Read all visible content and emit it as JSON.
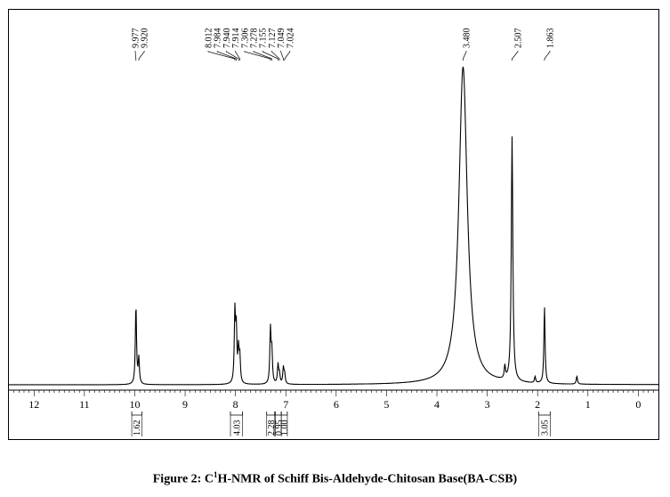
{
  "caption": {
    "prefix": "Figure 2: C",
    "superscript": "1",
    "suffix": "H-NMR of Schiff Bis-Aldehyde-Chitosan Base(BA-CSB)"
  },
  "chart_data": {
    "type": "line",
    "title": "",
    "xlabel": "",
    "ylabel": "",
    "x_reversed": true,
    "xlim": [
      12.5,
      -0.4
    ],
    "x_ticks": [
      12,
      11,
      10,
      9,
      8,
      7,
      6,
      5,
      4,
      3,
      2,
      1,
      0
    ],
    "grid": false,
    "peaks": [
      {
        "ppm": 9.977,
        "height": 0.25
      },
      {
        "ppm": 9.92,
        "height": 0.08
      },
      {
        "ppm": 8.012,
        "height": 0.22
      },
      {
        "ppm": 7.984,
        "height": 0.16
      },
      {
        "ppm": 7.94,
        "height": 0.1
      },
      {
        "ppm": 7.914,
        "height": 0.08
      },
      {
        "ppm": 7.306,
        "height": 0.17
      },
      {
        "ppm": 7.278,
        "height": 0.1
      },
      {
        "ppm": 7.155,
        "height": 0.06
      },
      {
        "ppm": 7.127,
        "height": 0.03
      },
      {
        "ppm": 7.049,
        "height": 0.05
      },
      {
        "ppm": 7.024,
        "height": 0.03
      },
      {
        "ppm": 3.48,
        "height": 1.0
      },
      {
        "ppm": 2.507,
        "height": 0.77
      },
      {
        "ppm": 1.863,
        "height": 0.24
      },
      {
        "ppm": 2.65,
        "height": 0.04
      },
      {
        "ppm": 2.05,
        "height": 0.02
      },
      {
        "ppm": 1.22,
        "height": 0.025
      }
    ],
    "peak_labels": [
      {
        "text": "9.977",
        "ppm": 9.977
      },
      {
        "text": "9.920",
        "ppm": 9.92
      },
      {
        "text": "8.012",
        "ppm": 8.012
      },
      {
        "text": "7.984",
        "ppm": 7.984
      },
      {
        "text": "7.940",
        "ppm": 7.94
      },
      {
        "text": "7.914",
        "ppm": 7.914
      },
      {
        "text": "7.306",
        "ppm": 7.306
      },
      {
        "text": "7.278",
        "ppm": 7.278
      },
      {
        "text": "7.155",
        "ppm": 7.155
      },
      {
        "text": "7.127",
        "ppm": 7.127
      },
      {
        "text": "7.049",
        "ppm": 7.049
      },
      {
        "text": "7.024",
        "ppm": 7.024
      },
      {
        "text": "3.480",
        "ppm": 3.48
      },
      {
        "text": "2.507",
        "ppm": 2.507
      },
      {
        "text": "1.863",
        "ppm": 1.863
      }
    ],
    "integrals": [
      {
        "text": "1.62",
        "from": 10.06,
        "to": 9.86
      },
      {
        "text": "4.03",
        "from": 8.1,
        "to": 7.86
      },
      {
        "text": "2.28",
        "from": 7.38,
        "to": 7.22
      },
      {
        "text": "0.95",
        "from": 7.21,
        "to": 7.09
      },
      {
        "text": "1.00",
        "from": 7.09,
        "to": 6.97
      },
      {
        "text": "3.05",
        "from": 1.98,
        "to": 1.75
      }
    ]
  }
}
